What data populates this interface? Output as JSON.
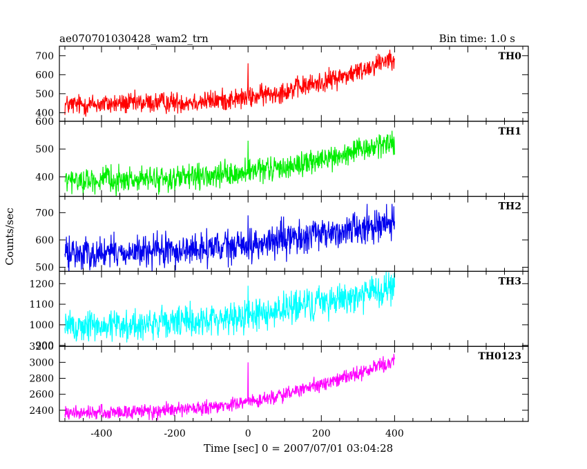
{
  "header": {
    "title": "ae070701030428_wam2_trn",
    "bin_time": "Bin time: 1.0 s"
  },
  "axes": {
    "xlabel": "Time [sec] 0 = 2007/07/01 03:04:28",
    "ylabel": "Counts/sec",
    "xlim": [
      -515,
      765
    ],
    "xticks": [
      -400,
      -200,
      0,
      200,
      400
    ]
  },
  "chart_data": [
    {
      "type": "line",
      "name": "TH0",
      "color": "#ff0000",
      "ylim": [
        355,
        750
      ],
      "yticks": [
        400,
        500,
        600,
        700
      ],
      "x": [
        -500,
        -400,
        -300,
        -200,
        -100,
        0,
        100,
        200,
        300,
        400
      ],
      "y": [
        440,
        445,
        450,
        455,
        462,
        478,
        515,
        560,
        615,
        700
      ],
      "noise": 28,
      "spike": {
        "x": 0,
        "y": 660
      }
    },
    {
      "type": "line",
      "name": "TH1",
      "color": "#00ee00",
      "ylim": [
        330,
        600
      ],
      "yticks": [
        400,
        500,
        600
      ],
      "x": [
        -500,
        -400,
        -300,
        -200,
        -100,
        0,
        100,
        200,
        300,
        400
      ],
      "y": [
        385,
        388,
        390,
        393,
        400,
        415,
        435,
        460,
        490,
        530
      ],
      "noise": 22,
      "spike": {
        "x": 0,
        "y": 530
      }
    },
    {
      "type": "line",
      "name": "TH2",
      "color": "#0000ee",
      "ylim": [
        485,
        760
      ],
      "yticks": [
        500,
        600,
        700
      ],
      "x": [
        -500,
        -400,
        -300,
        -200,
        -100,
        0,
        100,
        200,
        300,
        400
      ],
      "y": [
        550,
        552,
        555,
        560,
        568,
        580,
        600,
        620,
        645,
        670
      ],
      "noise": 30,
      "spike": {
        "x": 0,
        "y": 690
      }
    },
    {
      "type": "line",
      "name": "TH3",
      "color": "#00ffff",
      "ylim": [
        895,
        1260
      ],
      "yticks": [
        900,
        1000,
        1100,
        1200
      ],
      "x": [
        -500,
        -400,
        -300,
        -200,
        -100,
        0,
        100,
        200,
        300,
        400
      ],
      "y": [
        990,
        995,
        1000,
        1010,
        1025,
        1045,
        1075,
        1110,
        1145,
        1175
      ],
      "noise": 40,
      "spike": {
        "x": 0,
        "y": 1190
      }
    },
    {
      "type": "line",
      "name": "TH0123",
      "color": "#ff00ff",
      "ylim": [
        2260,
        3200
      ],
      "yticks": [
        2400,
        2600,
        2800,
        3000,
        3200
      ],
      "x": [
        -500,
        -400,
        -300,
        -200,
        -100,
        0,
        100,
        200,
        300,
        400
      ],
      "y": [
        2360,
        2370,
        2385,
        2400,
        2430,
        2500,
        2600,
        2720,
        2860,
        3020
      ],
      "noise": 45,
      "spike": {
        "x": 0,
        "y": 3000
      }
    }
  ]
}
